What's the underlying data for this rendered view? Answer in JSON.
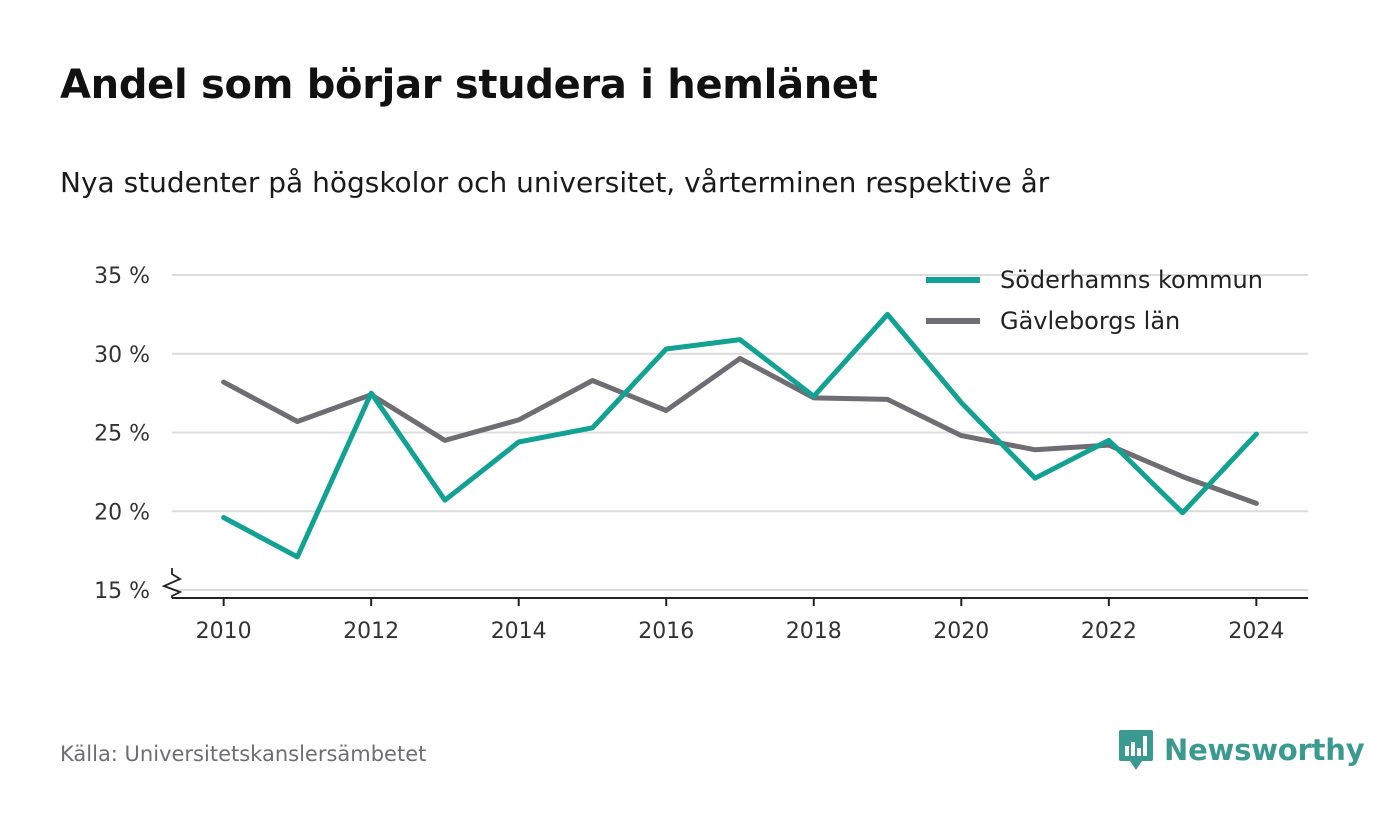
{
  "title": "Andel som börjar studera i hemlänet",
  "subtitle": "Nya studenter på högskolor och universitet, vårterminen respektive år",
  "source": "Källa: Universitetskanslersämbetet",
  "brand": {
    "name": "Newsworthy",
    "icon": "newsworthy-logo-icon",
    "color": "#3a9a8f"
  },
  "chart_data": {
    "type": "line",
    "x": [
      2010,
      2011,
      2012,
      2013,
      2014,
      2015,
      2016,
      2017,
      2018,
      2019,
      2020,
      2021,
      2022,
      2023,
      2024
    ],
    "x_ticks": [
      "2010",
      "2012",
      "2014",
      "2016",
      "2018",
      "2020",
      "2022",
      "2024"
    ],
    "x_tick_values": [
      2010,
      2012,
      2014,
      2016,
      2018,
      2020,
      2022,
      2024
    ],
    "y_ticks": [
      "15 %",
      "20 %",
      "25 %",
      "30 %",
      "35 %"
    ],
    "y_tick_values": [
      15,
      20,
      25,
      30,
      35
    ],
    "ylim": [
      15,
      35
    ],
    "xlim": [
      2009.3,
      2024.7
    ],
    "y_axis_break": true,
    "grid": "horizontal",
    "legend_position": "top-right",
    "series": [
      {
        "name": "Söderhamns kommun",
        "color": "#12a294",
        "values": [
          19.6,
          17.1,
          27.5,
          20.7,
          24.4,
          25.3,
          30.3,
          30.9,
          27.3,
          32.5,
          26.9,
          22.1,
          24.5,
          19.9,
          24.9
        ]
      },
      {
        "name": "Gävleborgs län",
        "color": "#6e6d73",
        "values": [
          28.2,
          25.7,
          27.4,
          24.5,
          25.8,
          28.3,
          26.4,
          29.7,
          27.2,
          27.1,
          24.8,
          23.9,
          24.2,
          22.2,
          20.5
        ]
      }
    ]
  }
}
